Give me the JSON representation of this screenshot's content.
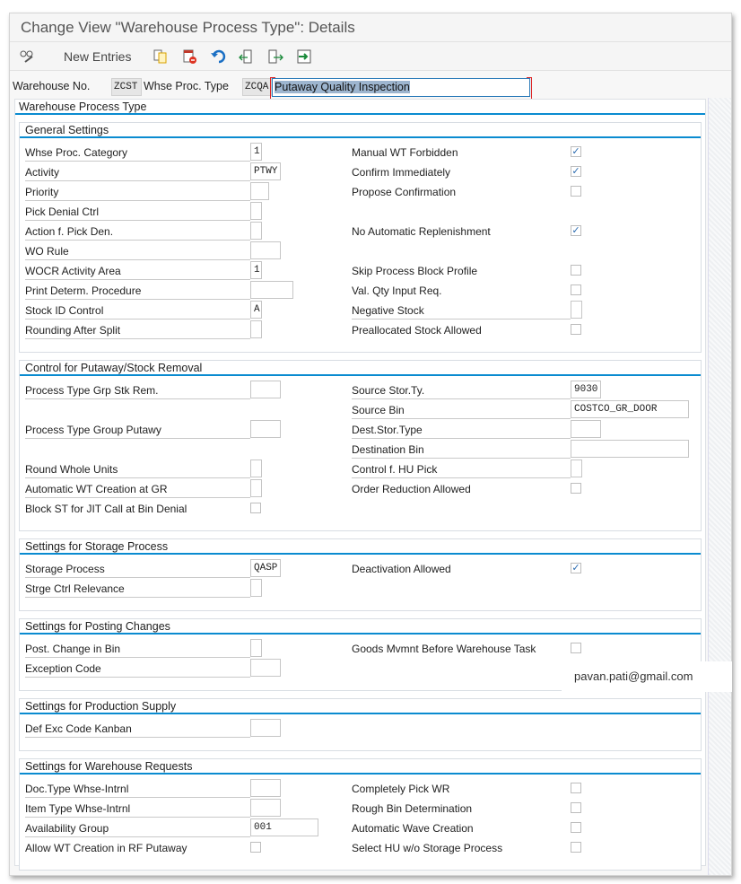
{
  "title": "Change View \"Warehouse Process Type\": Details",
  "toolbar": {
    "items": [
      {
        "icon": "display-change-icon"
      },
      {
        "label": "New Entries"
      },
      {
        "icon": "copy-icon"
      },
      {
        "icon": "delete-icon"
      },
      {
        "icon": "undo-icon"
      },
      {
        "icon": "previous-entry-icon"
      },
      {
        "icon": "next-entry-icon"
      },
      {
        "icon": "select-block-icon"
      }
    ]
  },
  "header": {
    "warehouse_label": "Warehouse No.",
    "warehouse_value": "ZCST",
    "type_label": "Whse Proc. Type",
    "type_value": "ZCQA",
    "description": "Putaway Quality Inspection"
  },
  "outer_title": "Warehouse Process Type",
  "colors": {
    "accent": "#0a8bd0",
    "highlight": "#fbff1e",
    "check": "#2a6bb0"
  },
  "groups": [
    {
      "title": "General Settings",
      "rows": [
        [
          {
            "label": "Whse Proc. Category",
            "type": "field",
            "value": "1",
            "size": "xs"
          },
          {
            "label": "Manual WT Forbidden",
            "type": "checkbox",
            "checked": true
          }
        ],
        [
          {
            "label": "Activity",
            "type": "field",
            "value": "PTWY",
            "size": "s"
          },
          {
            "label": "Confirm Immediately",
            "type": "checkbox",
            "checked": true
          }
        ],
        [
          {
            "label": "Priority",
            "type": "field",
            "value": "",
            "size": "xs2"
          },
          {
            "label": "Propose Confirmation",
            "type": "checkbox",
            "checked": false
          }
        ],
        [
          {
            "label": "Pick Denial Ctrl",
            "type": "field",
            "value": "",
            "size": "xs"
          },
          null
        ],
        [
          {
            "label": "Action f. Pick Den.",
            "type": "field",
            "value": "",
            "size": "xs"
          },
          {
            "label": "No Automatic Replenishment",
            "type": "checkbox",
            "checked": true
          }
        ],
        [
          {
            "label": "WO Rule",
            "type": "field",
            "value": "",
            "size": "s"
          },
          null
        ],
        [
          {
            "label": "WOCR Activity Area",
            "type": "field",
            "value": "1",
            "size": "xs"
          },
          {
            "label": "Skip Process Block Profile",
            "type": "checkbox",
            "checked": false
          }
        ],
        [
          {
            "label": "Print Determ. Procedure",
            "type": "field",
            "value": "",
            "size": "m"
          },
          {
            "label": "Val. Qty Input Req.",
            "type": "checkbox",
            "checked": false
          }
        ],
        [
          {
            "label": "Stock ID Control",
            "type": "field",
            "value": "A",
            "size": "xs"
          },
          {
            "label": "Negative Stock",
            "type": "field",
            "value": "",
            "size": "xs"
          }
        ],
        [
          {
            "label": "Rounding After Split",
            "type": "field",
            "value": "",
            "size": "xs"
          },
          {
            "label": "Preallocated Stock Allowed",
            "type": "checkbox",
            "checked": false
          }
        ]
      ]
    },
    {
      "title": "Control for Putaway/Stock Removal",
      "rows": [
        [
          {
            "label": "Process Type Grp Stk Rem.",
            "type": "field",
            "value": "",
            "size": "s"
          },
          {
            "label": "Source Stor.Ty.",
            "type": "field",
            "value": "9030",
            "size": "s"
          }
        ],
        [
          null,
          {
            "label": "Source Bin",
            "type": "field",
            "value": "COSTCO_GR_DOOR",
            "size": "xl"
          }
        ],
        [
          {
            "label": "Process Type Group Putawy",
            "type": "field",
            "value": "",
            "size": "s"
          },
          {
            "label": "Dest.Stor.Type",
            "type": "field",
            "value": "",
            "size": "s"
          }
        ],
        [
          null,
          {
            "label": "Destination Bin",
            "type": "field",
            "value": "",
            "size": "xl"
          }
        ],
        [
          {
            "label": "Round Whole Units",
            "type": "field",
            "value": "",
            "size": "xs"
          },
          {
            "label": "Control f. HU Pick",
            "type": "field",
            "value": "",
            "size": "xs"
          }
        ],
        [
          {
            "label": "Automatic WT Creation at GR",
            "type": "field",
            "value": "",
            "size": "xs"
          },
          {
            "label": "Order Reduction Allowed",
            "type": "checkbox",
            "checked": false
          }
        ],
        [
          {
            "label": "Block ST for JIT Call at Bin Denial",
            "type": "checkbox",
            "checked": false
          },
          null
        ]
      ]
    },
    {
      "title": "Settings for Storage Process",
      "rows": [
        [
          {
            "label": "Storage Process",
            "type": "field",
            "value": "QASP",
            "size": "s"
          },
          {
            "label": "Deactivation Allowed",
            "type": "checkbox",
            "checked": true
          }
        ],
        [
          {
            "label": "Strge Ctrl Relevance",
            "type": "field",
            "value": "",
            "size": "xs"
          },
          null
        ]
      ]
    },
    {
      "title": "Settings for Posting Changes",
      "rows": [
        [
          {
            "label": "Post. Change in Bin",
            "type": "field",
            "value": "",
            "size": "xs"
          },
          {
            "label": "Goods Mvmnt Before Warehouse Task",
            "type": "checkbox",
            "checked": false
          }
        ],
        [
          {
            "label": "Exception Code",
            "type": "field",
            "value": "",
            "size": "s"
          },
          null
        ]
      ]
    },
    {
      "title": "Settings for Production Supply",
      "rows": [
        [
          {
            "label": "Def Exc Code Kanban",
            "type": "field",
            "value": "",
            "size": "s"
          },
          null
        ]
      ]
    },
    {
      "title": "Settings for Warehouse Requests",
      "rows": [
        [
          {
            "label": "Doc.Type Whse-Intrnl",
            "type": "field",
            "value": "",
            "size": "s"
          },
          {
            "label": "Completely Pick WR",
            "type": "checkbox",
            "checked": false
          }
        ],
        [
          {
            "label": "Item Type Whse-Intrnl",
            "type": "field",
            "value": "",
            "size": "s"
          },
          {
            "label": "Rough Bin Determination",
            "type": "checkbox",
            "checked": false
          }
        ],
        [
          {
            "label": "Availability Group",
            "type": "field",
            "value": "001",
            "size": "l"
          },
          {
            "label": "Automatic Wave Creation",
            "type": "checkbox",
            "checked": false
          }
        ],
        [
          {
            "label": "Allow WT Creation in RF Putaway",
            "type": "checkbox",
            "checked": false
          },
          {
            "label": "Select HU w/o Storage Process",
            "type": "checkbox",
            "checked": false
          }
        ]
      ]
    }
  ],
  "watermark": "pavan.pati@gmail.com"
}
